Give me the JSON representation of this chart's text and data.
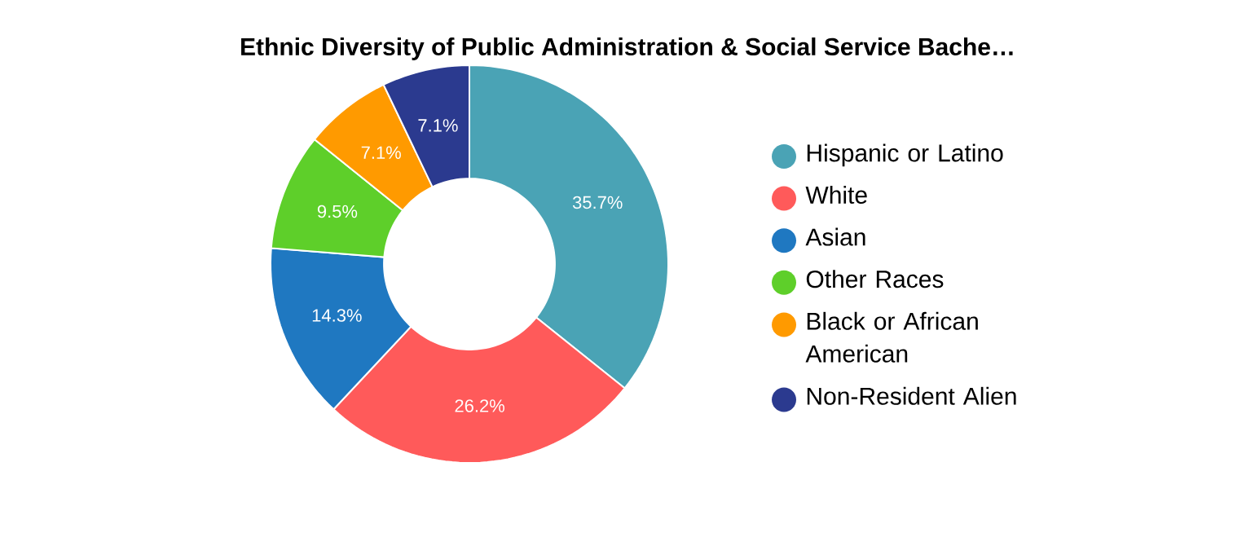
{
  "chart_data": {
    "type": "donut",
    "title": "Ethnic Diversity of Public Administration & Social Service Bache…",
    "categories": [
      "Hispanic or Latino",
      "White",
      "Asian",
      "Other Races",
      "Black or African American",
      "Non-Resident Alien"
    ],
    "values": [
      35.7,
      26.2,
      14.3,
      9.5,
      7.1,
      7.1
    ],
    "value_labels": [
      "35.7%",
      "26.2%",
      "14.3%",
      "9.5%",
      "7.1%",
      "7.1%"
    ],
    "colors": [
      "#4aa3b5",
      "#ff5a5a",
      "#1f78c1",
      "#5ecf2a",
      "#ff9a00",
      "#2b3a8f"
    ],
    "legend": "right"
  }
}
